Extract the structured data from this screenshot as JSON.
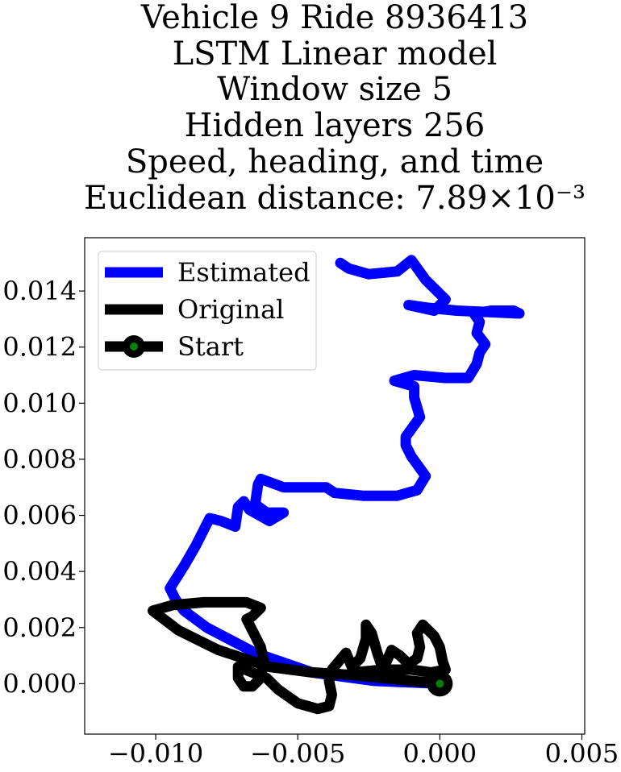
{
  "title_lines": [
    "Vehicle 9 Ride 8936413",
    "LSTM Linear model",
    "Window size 5",
    "Hidden layers 256",
    "Speed, heading, and time",
    "Euclidean distance: 7.89×10⁻³"
  ],
  "chart_data": {
    "type": "line",
    "title": "Vehicle 9 Ride 8936413 / LSTM Linear model / Window size 5 / Hidden layers 256 / Speed, heading, and time / Euclidean distance: 7.89×10⁻³",
    "xlabel": "",
    "ylabel": "",
    "xlim": [
      -0.0125,
      0.0051
    ],
    "ylim": [
      -0.0018,
      0.0159
    ],
    "xticks": [
      -0.01,
      -0.005,
      0.0,
      0.005
    ],
    "xtick_labels": [
      "−0.010",
      "−0.005",
      "0.000",
      "0.005"
    ],
    "yticks": [
      0.0,
      0.002,
      0.004,
      0.006,
      0.008,
      0.01,
      0.012,
      0.014
    ],
    "ytick_labels": [
      "0.000",
      "0.002",
      "0.004",
      "0.006",
      "0.008",
      "0.010",
      "0.012",
      "0.014"
    ],
    "grid": false,
    "legend": "upper-left",
    "series": [
      {
        "name": "Estimated",
        "color": "#0000ff",
        "points": [
          [
            0,
            0
          ],
          [
            -0.0023,
            0.0001
          ],
          [
            -0.0045,
            0.0004
          ],
          [
            -0.0065,
            0.0011
          ],
          [
            -0.0082,
            0.002
          ],
          [
            -0.009,
            0.0026
          ],
          [
            -0.0093,
            0.003
          ],
          [
            -0.0095,
            0.0034
          ],
          [
            -0.009,
            0.0042
          ],
          [
            -0.0086,
            0.0049
          ],
          [
            -0.0081,
            0.0059
          ],
          [
            -0.0077,
            0.0058
          ],
          [
            -0.0072,
            0.0056
          ],
          [
            -0.0071,
            0.0063
          ],
          [
            -0.0069,
            0.0065
          ],
          [
            -0.0067,
            0.0062
          ],
          [
            -0.006,
            0.0058
          ],
          [
            -0.0055,
            0.0061
          ],
          [
            -0.0061,
            0.0061
          ],
          [
            -0.0065,
            0.0064
          ],
          [
            -0.0064,
            0.0071
          ],
          [
            -0.0063,
            0.0073
          ],
          [
            -0.0055,
            0.007
          ],
          [
            -0.004,
            0.007
          ],
          [
            -0.0037,
            0.0068
          ],
          [
            -0.0027,
            0.0067
          ],
          [
            -0.0015,
            0.0067
          ],
          [
            -0.0008,
            0.0069
          ],
          [
            -0.0005,
            0.0074
          ],
          [
            -0.001,
            0.0081
          ],
          [
            -0.0012,
            0.0085
          ],
          [
            -0.0012,
            0.0088
          ],
          [
            -0.0007,
            0.0095
          ],
          [
            -0.0009,
            0.0102
          ],
          [
            -0.0009,
            0.0106
          ],
          [
            -0.0016,
            0.0108
          ],
          [
            -0.0009,
            0.011
          ],
          [
            0.0002,
            0.0109
          ],
          [
            0.001,
            0.0109
          ],
          [
            0.0013,
            0.0114
          ],
          [
            0.0014,
            0.0118
          ],
          [
            0.0016,
            0.0121
          ],
          [
            0.0013,
            0.0125
          ],
          [
            0.0014,
            0.0129
          ],
          [
            0.0012,
            0.0132
          ],
          [
            0.0018,
            0.0133
          ],
          [
            0.0026,
            0.0133
          ],
          [
            0.0028,
            0.0132
          ],
          [
            0.0006,
            0.0133
          ],
          [
            -0.0004,
            0.0134
          ],
          [
            -0.0011,
            0.0135
          ],
          [
            -0.0002,
            0.0133
          ],
          [
            0.0002,
            0.0137
          ],
          [
            -0.0005,
            0.0144
          ],
          [
            -0.001,
            0.0151
          ],
          [
            -0.0015,
            0.0147
          ],
          [
            -0.0025,
            0.0146
          ],
          [
            -0.0032,
            0.0148
          ],
          [
            -0.0035,
            0.015
          ]
        ]
      },
      {
        "name": "Original",
        "color": "#000000",
        "points": [
          [
            0,
            0
          ],
          [
            -0.001,
            0.0001
          ],
          [
            -0.002,
            0.0002
          ],
          [
            -0.003,
            0.0003
          ],
          [
            -0.0045,
            0.0004
          ],
          [
            -0.006,
            0.0006
          ],
          [
            -0.0078,
            0.0012
          ],
          [
            -0.0092,
            0.0019
          ],
          [
            -0.0101,
            0.0026
          ],
          [
            -0.0094,
            0.0028
          ],
          [
            -0.0083,
            0.0029
          ],
          [
            -0.0075,
            0.0029
          ],
          [
            -0.0068,
            0.0029
          ],
          [
            -0.0063,
            0.0027
          ],
          [
            -0.0066,
            0.0024
          ],
          [
            -0.0068,
            0.0023
          ],
          [
            -0.0066,
            0.0019
          ],
          [
            -0.0063,
            0.0013
          ],
          [
            -0.0062,
            0.0008
          ],
          [
            -0.0063,
            0.0002
          ],
          [
            -0.0066,
            -0.0001
          ],
          [
            -0.0069,
            -0.0001
          ],
          [
            -0.0071,
            0.0002
          ],
          [
            -0.0071,
            0.0006
          ],
          [
            -0.0066,
            0.0004
          ],
          [
            -0.0061,
            0.0002
          ],
          [
            -0.0057,
            -0.0002
          ],
          [
            -0.005,
            -0.0007
          ],
          [
            -0.0043,
            -0.0009
          ],
          [
            -0.0039,
            -0.0008
          ],
          [
            -0.0038,
            -0.0004
          ],
          [
            -0.0039,
            0.0001
          ],
          [
            -0.0038,
            0.0005
          ],
          [
            -0.0033,
            0.0011
          ],
          [
            -0.0031,
            0.0006
          ],
          [
            -0.0028,
            0.0009
          ],
          [
            -0.0026,
            0.0016
          ],
          [
            -0.0026,
            0.0021
          ],
          [
            -0.0024,
            0.0018
          ],
          [
            -0.0022,
            0.0011
          ],
          [
            -0.002,
            0.0005
          ],
          [
            -0.0017,
            0.0012
          ],
          [
            -0.0014,
            0.001
          ],
          [
            -0.0011,
            0.0007
          ],
          [
            -0.0008,
            0.0009
          ],
          [
            -0.0007,
            0.0013
          ],
          [
            -0.0008,
            0.0018
          ],
          [
            -0.0006,
            0.0021
          ],
          [
            -0.0002,
            0.0017
          ],
          [
            0.0,
            0.0013
          ],
          [
            0.0001,
            0.0008
          ],
          [
            0.0002,
            0.0005
          ],
          [
            -0.0003,
            0.0004
          ],
          [
            -0.001,
            0.0005
          ],
          [
            -0.002,
            0.0005
          ],
          [
            -0.003,
            0.0004
          ],
          [
            -0.002,
            0.0002
          ],
          [
            -0.001,
            0.0001
          ],
          [
            0,
            0
          ]
        ]
      }
    ],
    "start_marker": {
      "name": "Start",
      "point": [
        0,
        0
      ],
      "outer_color": "#000000",
      "inner_color": "#008000"
    }
  }
}
